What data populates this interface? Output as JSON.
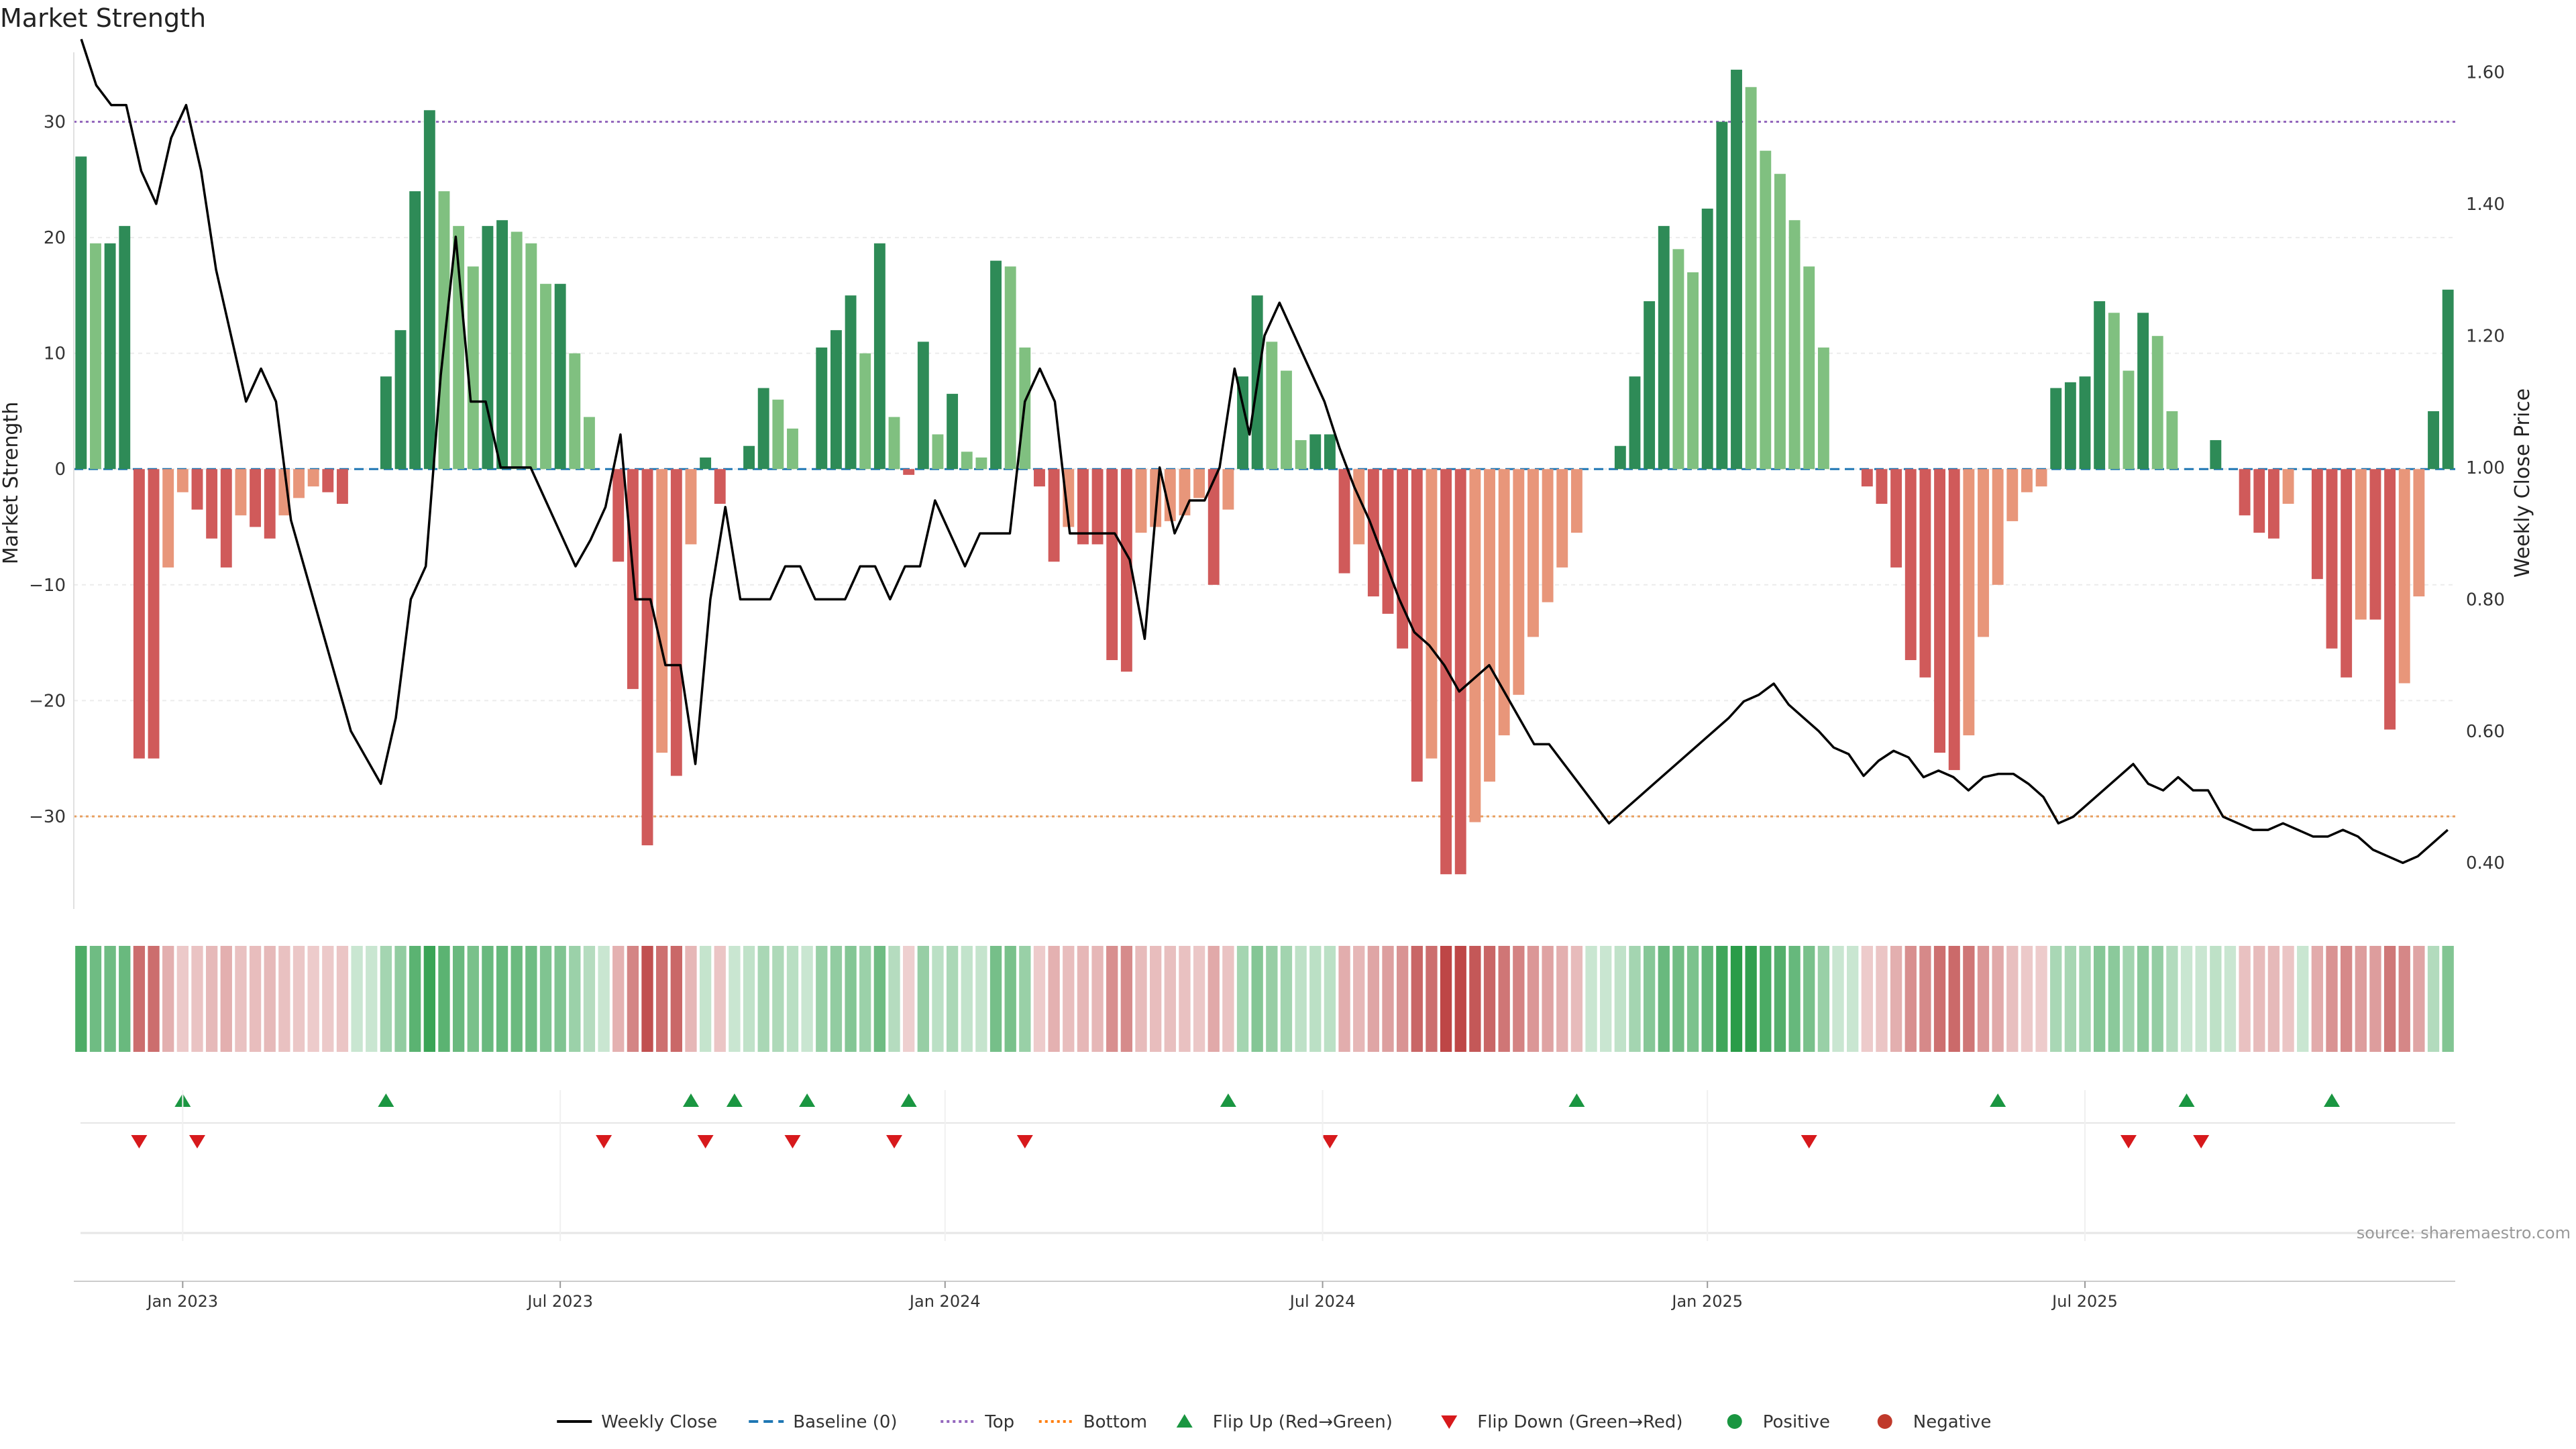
{
  "chart_data": {
    "type": "bar",
    "title": "Market Strength",
    "ylabel": "Market Strength",
    "y2label": "Weekly Close Price",
    "ylim": [
      -38,
      36
    ],
    "y2lim": [
      0.33,
      1.63
    ],
    "yticks": [
      30,
      20,
      10,
      0,
      -10,
      -20,
      -30
    ],
    "yticklabels": [
      "30",
      "20",
      "10",
      "0",
      "−10",
      "−20",
      "−30"
    ],
    "y2ticks": [
      1.6,
      1.4,
      1.2,
      1.0,
      0.8,
      0.6,
      0.4
    ],
    "y2ticklabels": [
      "1.60",
      "1.40",
      "1.20",
      "1.00",
      "0.80",
      "0.60",
      "0.40"
    ],
    "top_line": 30,
    "bottom_line": -30,
    "x_start_index": 0,
    "x_end_index": 156,
    "xticks": [
      {
        "label": "Jan 2023",
        "index": 7
      },
      {
        "label": "Jul 2023",
        "index": 33
      },
      {
        "label": "Jan 2024",
        "index": 59.5
      },
      {
        "label": "Jul 2024",
        "index": 85.5
      },
      {
        "label": "Jan 2025",
        "index": 112
      },
      {
        "label": "Jul 2025",
        "index": 138
      }
    ],
    "strength_values": [
      27,
      19.5,
      19.5,
      21,
      -25,
      -25,
      -8.5,
      -2,
      -3.5,
      -6,
      -8.5,
      -4,
      -5,
      -6,
      -4,
      -2.5,
      -1.5,
      -2,
      -3,
      0,
      0,
      8,
      12,
      24,
      31,
      24,
      21,
      17.5,
      21,
      21.5,
      20.5,
      19.5,
      16,
      16,
      10,
      4.5,
      0,
      -8,
      -19,
      -32.5,
      -24.5,
      -26.5,
      -6.5,
      1,
      -3,
      0,
      2,
      7,
      6,
      3.5,
      0,
      10.5,
      12,
      15,
      10,
      19.5,
      4.5,
      -0.5,
      11,
      3,
      6.5,
      1.5,
      1,
      18,
      17.5,
      10.5,
      -1.5,
      -8,
      -5,
      -6.5,
      -6.5,
      -16.5,
      -17.5,
      -5.5,
      -5,
      -4.5,
      -4,
      -2.5,
      -10,
      -3.5,
      8,
      15,
      11,
      8.5,
      2.5,
      3,
      3,
      -9,
      -6.5,
      -11,
      -12.5,
      -15.5,
      -27,
      -25,
      -35,
      -35,
      -30.5,
      -27,
      -23,
      -19.5,
      -14.5,
      -11.5,
      -8.5,
      -5.5,
      0,
      0,
      2,
      8,
      14.5,
      21,
      19,
      17,
      22.5,
      30,
      34.5,
      33,
      27.5,
      25.5,
      21.5,
      17.5,
      10.5,
      0,
      0,
      -1.5,
      -3,
      -8.5,
      -16.5,
      -18,
      -24.5,
      -26,
      -23,
      -14.5,
      -10,
      -4.5,
      -2,
      -1.5,
      7,
      7.5,
      8,
      14.5,
      13.5,
      8.5,
      13.5,
      11.5,
      5,
      0,
      0,
      2.5,
      0,
      -4,
      -5.5,
      -6,
      -3,
      0,
      -9.5,
      -15.5,
      -18,
      -13,
      -13,
      -22.5,
      -18.5,
      -11,
      5,
      15.5
    ],
    "price_points": [
      [
        0.5,
        1.65
      ],
      [
        1.5,
        1.58
      ],
      [
        2.5,
        1.55
      ],
      [
        3.5,
        1.55
      ],
      [
        4.5,
        1.45
      ],
      [
        5.5,
        1.4
      ],
      [
        6.5,
        1.5
      ],
      [
        7.5,
        1.55
      ],
      [
        8.5,
        1.45
      ],
      [
        9.5,
        1.3
      ],
      [
        10.5,
        1.2
      ],
      [
        11.5,
        1.1
      ],
      [
        12.5,
        1.15
      ],
      [
        13.5,
        1.1
      ],
      [
        14.5,
        0.92
      ],
      [
        15.5,
        0.84
      ],
      [
        16.5,
        0.76
      ],
      [
        17.5,
        0.68
      ],
      [
        18.5,
        0.6
      ],
      [
        19.5,
        0.56
      ],
      [
        20.5,
        0.52
      ],
      [
        21.5,
        0.62
      ],
      [
        22.5,
        0.8
      ],
      [
        23.5,
        0.85
      ],
      [
        24.5,
        1.14
      ],
      [
        25.5,
        1.35
      ],
      [
        26.5,
        1.1
      ],
      [
        27.5,
        1.1
      ],
      [
        28.5,
        1.0
      ],
      [
        29.5,
        1.0
      ],
      [
        30.5,
        1.0
      ],
      [
        31.5,
        0.95
      ],
      [
        32.5,
        0.9
      ],
      [
        33.5,
        0.85
      ],
      [
        34.5,
        0.89
      ],
      [
        35.5,
        0.94
      ],
      [
        36.5,
        1.05
      ],
      [
        37.5,
        0.8
      ],
      [
        38.5,
        0.8
      ],
      [
        39.5,
        0.7
      ],
      [
        40.5,
        0.7
      ],
      [
        41.5,
        0.55
      ],
      [
        42.5,
        0.8
      ],
      [
        43.5,
        0.94
      ],
      [
        44.5,
        0.8
      ],
      [
        45.5,
        0.8
      ],
      [
        46.5,
        0.8
      ],
      [
        47.5,
        0.85
      ],
      [
        48.5,
        0.85
      ],
      [
        49.5,
        0.8
      ],
      [
        50.5,
        0.8
      ],
      [
        51.5,
        0.8
      ],
      [
        52.5,
        0.85
      ],
      [
        53.5,
        0.85
      ],
      [
        54.5,
        0.8
      ],
      [
        55.5,
        0.85
      ],
      [
        56.5,
        0.85
      ],
      [
        57.5,
        0.95
      ],
      [
        58.5,
        0.9
      ],
      [
        59.5,
        0.85
      ],
      [
        60.5,
        0.9
      ],
      [
        61.5,
        0.9
      ],
      [
        62.5,
        0.9
      ],
      [
        63.5,
        1.1
      ],
      [
        64.5,
        1.15
      ],
      [
        65.5,
        1.1
      ],
      [
        66.5,
        0.9
      ],
      [
        67.5,
        0.9
      ],
      [
        68.5,
        0.9
      ],
      [
        69.5,
        0.9
      ],
      [
        70.5,
        0.86
      ],
      [
        71.5,
        0.74
      ],
      [
        72.5,
        1.0
      ],
      [
        73.5,
        0.9
      ],
      [
        74.5,
        0.95
      ],
      [
        75.5,
        0.95
      ],
      [
        76.5,
        1.0
      ],
      [
        77.5,
        1.15
      ],
      [
        78.5,
        1.05
      ],
      [
        79.5,
        1.2
      ],
      [
        80.5,
        1.25
      ],
      [
        81.5,
        1.2
      ],
      [
        82.5,
        1.15
      ],
      [
        83.5,
        1.1
      ],
      [
        84.5,
        1.03
      ],
      [
        85.5,
        0.97
      ],
      [
        86.5,
        0.92
      ],
      [
        87.5,
        0.86
      ],
      [
        88.5,
        0.8
      ],
      [
        89.5,
        0.75
      ],
      [
        90.5,
        0.73
      ],
      [
        91.5,
        0.7
      ],
      [
        92.5,
        0.66
      ],
      [
        93.5,
        0.68
      ],
      [
        94.5,
        0.7
      ],
      [
        95.5,
        0.66
      ],
      [
        96.5,
        0.62
      ],
      [
        97.5,
        0.58
      ],
      [
        98.5,
        0.58
      ],
      [
        99.5,
        0.55
      ],
      [
        100.5,
        0.52
      ],
      [
        101.5,
        0.49
      ],
      [
        102.5,
        0.46
      ],
      [
        103.5,
        0.48
      ],
      [
        104.5,
        0.5
      ],
      [
        105.5,
        0.52
      ],
      [
        106.5,
        0.54
      ],
      [
        107.5,
        0.56
      ],
      [
        108.5,
        0.58
      ],
      [
        109.5,
        0.6
      ],
      [
        110.5,
        0.62
      ],
      [
        111.5,
        0.645
      ],
      [
        112.5,
        0.655
      ],
      [
        113.5,
        0.672
      ],
      [
        114.5,
        0.64
      ],
      [
        115.5,
        0.62
      ],
      [
        116.5,
        0.6
      ],
      [
        117.5,
        0.575
      ],
      [
        118.5,
        0.565
      ],
      [
        119.5,
        0.532
      ],
      [
        120.5,
        0.555
      ],
      [
        121.5,
        0.57
      ],
      [
        122.5,
        0.56
      ],
      [
        123.5,
        0.53
      ],
      [
        124.5,
        0.54
      ],
      [
        125.5,
        0.53
      ],
      [
        126.5,
        0.51
      ],
      [
        127.5,
        0.53
      ],
      [
        128.5,
        0.535
      ],
      [
        129.5,
        0.535
      ],
      [
        130.5,
        0.52
      ],
      [
        131.5,
        0.5
      ],
      [
        132.5,
        0.46
      ],
      [
        133.5,
        0.47
      ],
      [
        134.5,
        0.49
      ],
      [
        135.5,
        0.51
      ],
      [
        136.5,
        0.53
      ],
      [
        137.5,
        0.55
      ],
      [
        138.5,
        0.52
      ],
      [
        139.5,
        0.51
      ],
      [
        140.5,
        0.53
      ],
      [
        141.5,
        0.51
      ],
      [
        142.5,
        0.51
      ],
      [
        143.5,
        0.47
      ],
      [
        144.5,
        0.46
      ],
      [
        145.5,
        0.45
      ],
      [
        146.5,
        0.45
      ],
      [
        147.5,
        0.46
      ],
      [
        148.5,
        0.45
      ],
      [
        149.5,
        0.44
      ],
      [
        150.5,
        0.44
      ],
      [
        151.5,
        0.45
      ],
      [
        152.5,
        0.44
      ],
      [
        153.5,
        0.42
      ],
      [
        154.5,
        0.41
      ],
      [
        155.5,
        0.4
      ],
      [
        156.5,
        0.41
      ],
      [
        157.5,
        0.43
      ],
      [
        158.5,
        0.45
      ]
    ],
    "flip_up_indices": [
      7,
      21,
      42,
      45,
      50,
      57,
      79,
      103,
      132,
      145,
      155
    ],
    "flip_down_indices": [
      4,
      8,
      36,
      43,
      49,
      56,
      65,
      86,
      119,
      141,
      146
    ],
    "source_text": "source: sharemaestro.com",
    "legend": [
      {
        "label": "Weekly Close",
        "marker": "line",
        "color": "#000000"
      },
      {
        "label": "Baseline (0)",
        "marker": "dashed-line",
        "color": "#1f77b4"
      },
      {
        "label": "Top",
        "marker": "dotted-line",
        "color": "#9467bd"
      },
      {
        "label": "Bottom",
        "marker": "dotted-line",
        "color": "#ff7f0e"
      },
      {
        "label": "Flip Up (Red→Green)",
        "marker": "triangle-up",
        "color": "#1a9641"
      },
      {
        "label": "Flip Down (Green→Red)",
        "marker": "triangle-down",
        "color": "#d7191c"
      },
      {
        "label": "Positive",
        "marker": "circle",
        "color": "#1a9641"
      },
      {
        "label": "Negative",
        "marker": "circle",
        "color": "#c0392b"
      }
    ]
  },
  "colors": {
    "pos_strong": "#2e8b57",
    "pos_light": "#80c080",
    "neg_strong": "#d05a5a",
    "neg_light": "#e8967a",
    "price_line": "#000000",
    "baseline": "#1f77b4",
    "top_line": "#9467bd",
    "bottom_line": "#e8a060",
    "flip_up": "#1a9641",
    "flip_down": "#d7191c"
  }
}
